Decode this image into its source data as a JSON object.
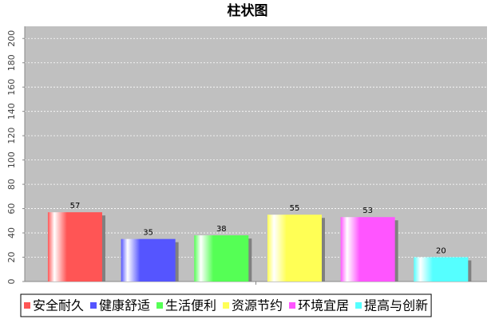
{
  "chart_data": {
    "type": "bar",
    "title": "柱状图",
    "categories": [
      null
    ],
    "series": [
      {
        "name": "安全耐久",
        "color": "#ff5555",
        "values": [
          57
        ]
      },
      {
        "name": "健康舒适",
        "color": "#5555ff",
        "values": [
          35
        ]
      },
      {
        "name": "生活便利",
        "color": "#55ff55",
        "values": [
          38
        ]
      },
      {
        "name": "资源节约",
        "color": "#ffff55",
        "values": [
          55
        ]
      },
      {
        "name": "环境宜居",
        "color": "#ff55ff",
        "values": [
          53
        ]
      },
      {
        "name": "提高与创新",
        "color": "#55ffff",
        "values": [
          20
        ]
      }
    ],
    "ylim": [
      0,
      210
    ],
    "yticks": [
      0,
      20,
      40,
      60,
      80,
      100,
      120,
      140,
      160,
      180,
      200
    ],
    "grid": true,
    "legend": "bottom"
  }
}
